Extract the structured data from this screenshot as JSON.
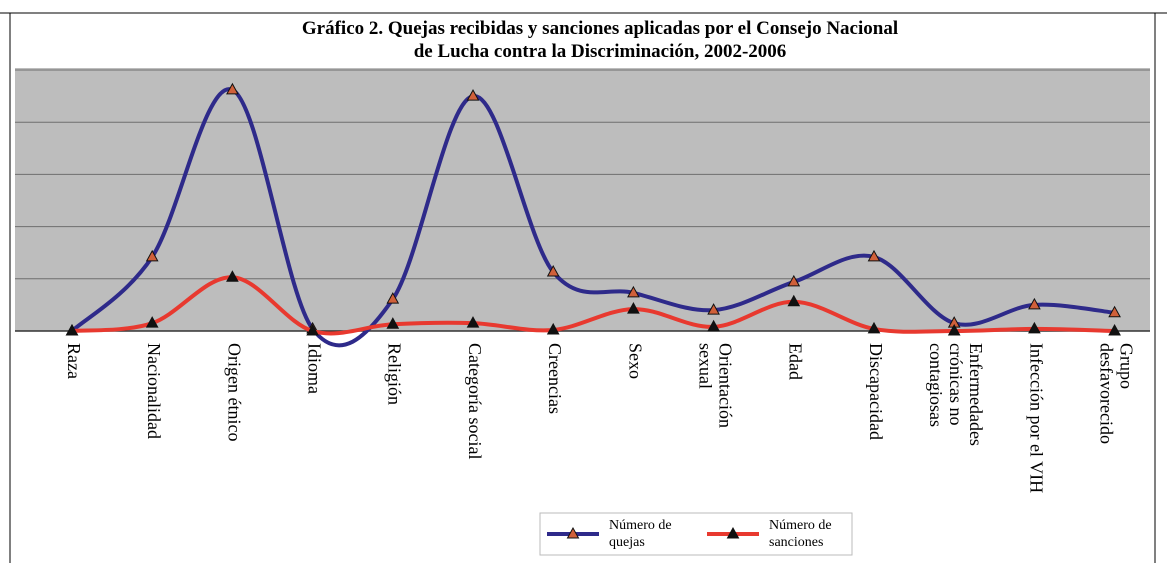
{
  "chart_data": {
    "type": "line",
    "title": "Gráfico 2. Quejas recibidas y sanciones aplicadas por el Consejo Nacional\nde Lucha contra la Discriminación, 2002-2006",
    "categories": [
      "Raza",
      "Nacionalidad",
      "Origen étnico",
      "Idioma",
      "Religión",
      "Categoría social",
      "Creencias",
      "Sexo",
      "Orientación\nsexual",
      "Edad",
      "Discapacidad",
      "Enfermedades\ncrónicas no\ncontagiosas",
      "Infección por el VIH",
      "Grupo\ndesfavorecido"
    ],
    "series": [
      {
        "name": "Número de\nquejas",
        "color": "#2e2a8a",
        "marker_color": "#d0603a",
        "values": [
          0,
          1.42,
          4.62,
          0.04,
          0.61,
          4.5,
          1.13,
          0.73,
          0.4,
          0.94,
          1.42,
          0.15,
          0.5,
          0.35
        ]
      },
      {
        "name": "Número de\nsanciones",
        "color": "#e8392f",
        "marker_color": "#111111",
        "values": [
          0,
          0.15,
          1.03,
          0,
          0.13,
          0.15,
          0.02,
          0.42,
          0.08,
          0.56,
          0.04,
          0,
          0.04,
          0
        ]
      }
    ],
    "ylim": [
      0,
      5
    ],
    "yticks": [
      0,
      1,
      2,
      3,
      4,
      5
    ],
    "grid": true,
    "legend": "bottom"
  }
}
